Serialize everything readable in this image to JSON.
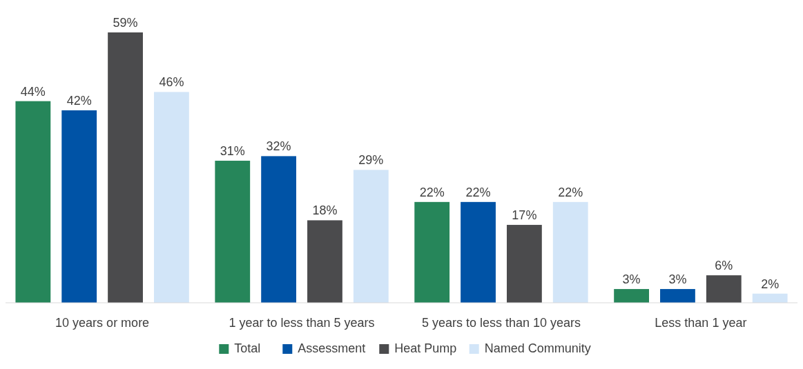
{
  "chart_data": {
    "type": "bar",
    "categories": [
      "10 years or more",
      "1 year to less than 5 years",
      "5 years to less than 10 years",
      "Less than 1 year"
    ],
    "series": [
      {
        "name": "Total",
        "color": "#26865a",
        "values": [
          44,
          31,
          22,
          3
        ],
        "value_labels": [
          "44%",
          "31%",
          "22%",
          "3%"
        ]
      },
      {
        "name": "Assessment",
        "color": "#0053a6",
        "values": [
          42,
          32,
          22,
          3
        ],
        "value_labels": [
          "42%",
          "32%",
          "22%",
          "3%"
        ]
      },
      {
        "name": "Heat Pump",
        "color": "#4b4b4d",
        "values": [
          59,
          18,
          17,
          6
        ],
        "value_labels": [
          "59%",
          "18%",
          "17%",
          "6%"
        ]
      },
      {
        "name": "Named Community",
        "color": "#d2e5f8",
        "values": [
          46,
          29,
          22,
          2
        ],
        "value_labels": [
          "46%",
          "29%",
          "22%",
          "2%"
        ]
      }
    ],
    "legend": "bottom"
  }
}
